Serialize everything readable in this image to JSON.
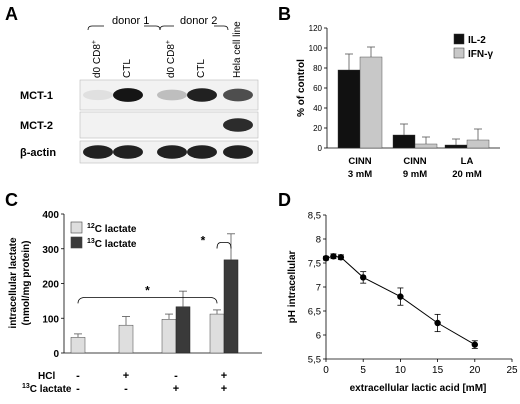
{
  "panel_labels": [
    "A",
    "B",
    "C",
    "D"
  ],
  "panelA": {
    "donors": [
      "donor 1",
      "donor 2"
    ],
    "lanes": [
      "d0 CD8",
      "CTL",
      "d0 CD8",
      "CTL",
      "Hela cell line"
    ],
    "cd8_superscript": "+",
    "blots": [
      {
        "label": "MCT-1",
        "bands": [
          0.05,
          0.95,
          0.2,
          0.9,
          0.7
        ]
      },
      {
        "label": "MCT-2",
        "bands": [
          0.0,
          0.0,
          0.0,
          0.0,
          0.85
        ]
      },
      {
        "label": "β-actin",
        "bands": [
          0.9,
          0.9,
          0.9,
          0.9,
          0.9
        ]
      }
    ]
  },
  "chart_data": [
    {
      "panel": "B",
      "type": "bar",
      "ylabel": "% of control",
      "ylim": [
        0,
        120
      ],
      "yticks": [
        "0",
        "20",
        "40",
        "60",
        "80",
        "100",
        "120"
      ],
      "categories": [
        [
          "CINN",
          "3 mM"
        ],
        [
          "CINN",
          "9 mM"
        ],
        [
          "LA",
          "20 mM"
        ]
      ],
      "series": [
        {
          "name": "IL-2",
          "color": "#111111",
          "values": [
            78,
            13,
            3
          ],
          "errors": [
            16,
            11,
            6
          ]
        },
        {
          "name": "IFN-γ",
          "color": "#c8c8c8",
          "values": [
            91,
            4,
            8
          ],
          "errors": [
            10,
            7,
            11
          ]
        }
      ],
      "legend": "top-right",
      "grid": false
    },
    {
      "panel": "C",
      "type": "bar",
      "ylabel": [
        "intracellular lactate",
        "(nmol/mg protein)"
      ],
      "ylim": [
        0,
        400
      ],
      "yticks": [
        "0",
        "100",
        "200",
        "300",
        "400"
      ],
      "groups": [
        {
          "twelveC": 45,
          "twelveC_err": 10,
          "thirteenC": null,
          "thirteenC_err": null
        },
        {
          "twelveC": 80,
          "twelveC_err": 25,
          "thirteenC": null,
          "thirteenC_err": null
        },
        {
          "twelveC": 97,
          "twelveC_err": 15,
          "thirteenC": 133,
          "thirteenC_err": 45
        },
        {
          "twelveC": 112,
          "twelveC_err": 12,
          "thirteenC": 268,
          "thirteenC_err": 75
        }
      ],
      "series": [
        {
          "name": "lactate",
          "isotope": "12",
          "color": "#dedede"
        },
        {
          "name": "lactate",
          "isotope": "13",
          "color": "#3a3a3a"
        }
      ],
      "isotope_prefix": "C",
      "conditions": [
        {
          "label": "HCl",
          "values": [
            "-",
            "+",
            "-",
            "+"
          ]
        },
        {
          "label": "C lactate",
          "isotope": "13",
          "values": [
            "-",
            "-",
            "+",
            "+"
          ]
        }
      ],
      "significance": [
        {
          "symbol": "*",
          "between": "12C group1 vs group4"
        },
        {
          "symbol": "*",
          "between": "12C vs 13C group4"
        }
      ],
      "legend": "top-left",
      "grid": false
    },
    {
      "panel": "D",
      "type": "line",
      "xlabel": "extracellular lactic acid [mM]",
      "ylabel": "pH intracellular",
      "xlim": [
        0,
        25
      ],
      "ylim": [
        5.5,
        8.5
      ],
      "xticks": [
        "0",
        "5",
        "10",
        "15",
        "20",
        "25"
      ],
      "yticks": [
        "5,5",
        "6",
        "6,5",
        "7",
        "7,5",
        "8",
        "8,5"
      ],
      "x": [
        0,
        1,
        2,
        5,
        10,
        15,
        20
      ],
      "y": [
        7.6,
        7.64,
        7.62,
        7.2,
        6.8,
        6.25,
        5.8
      ],
      "errors": [
        0.04,
        0.05,
        0.05,
        0.12,
        0.18,
        0.18,
        0.08
      ],
      "grid": false
    }
  ]
}
